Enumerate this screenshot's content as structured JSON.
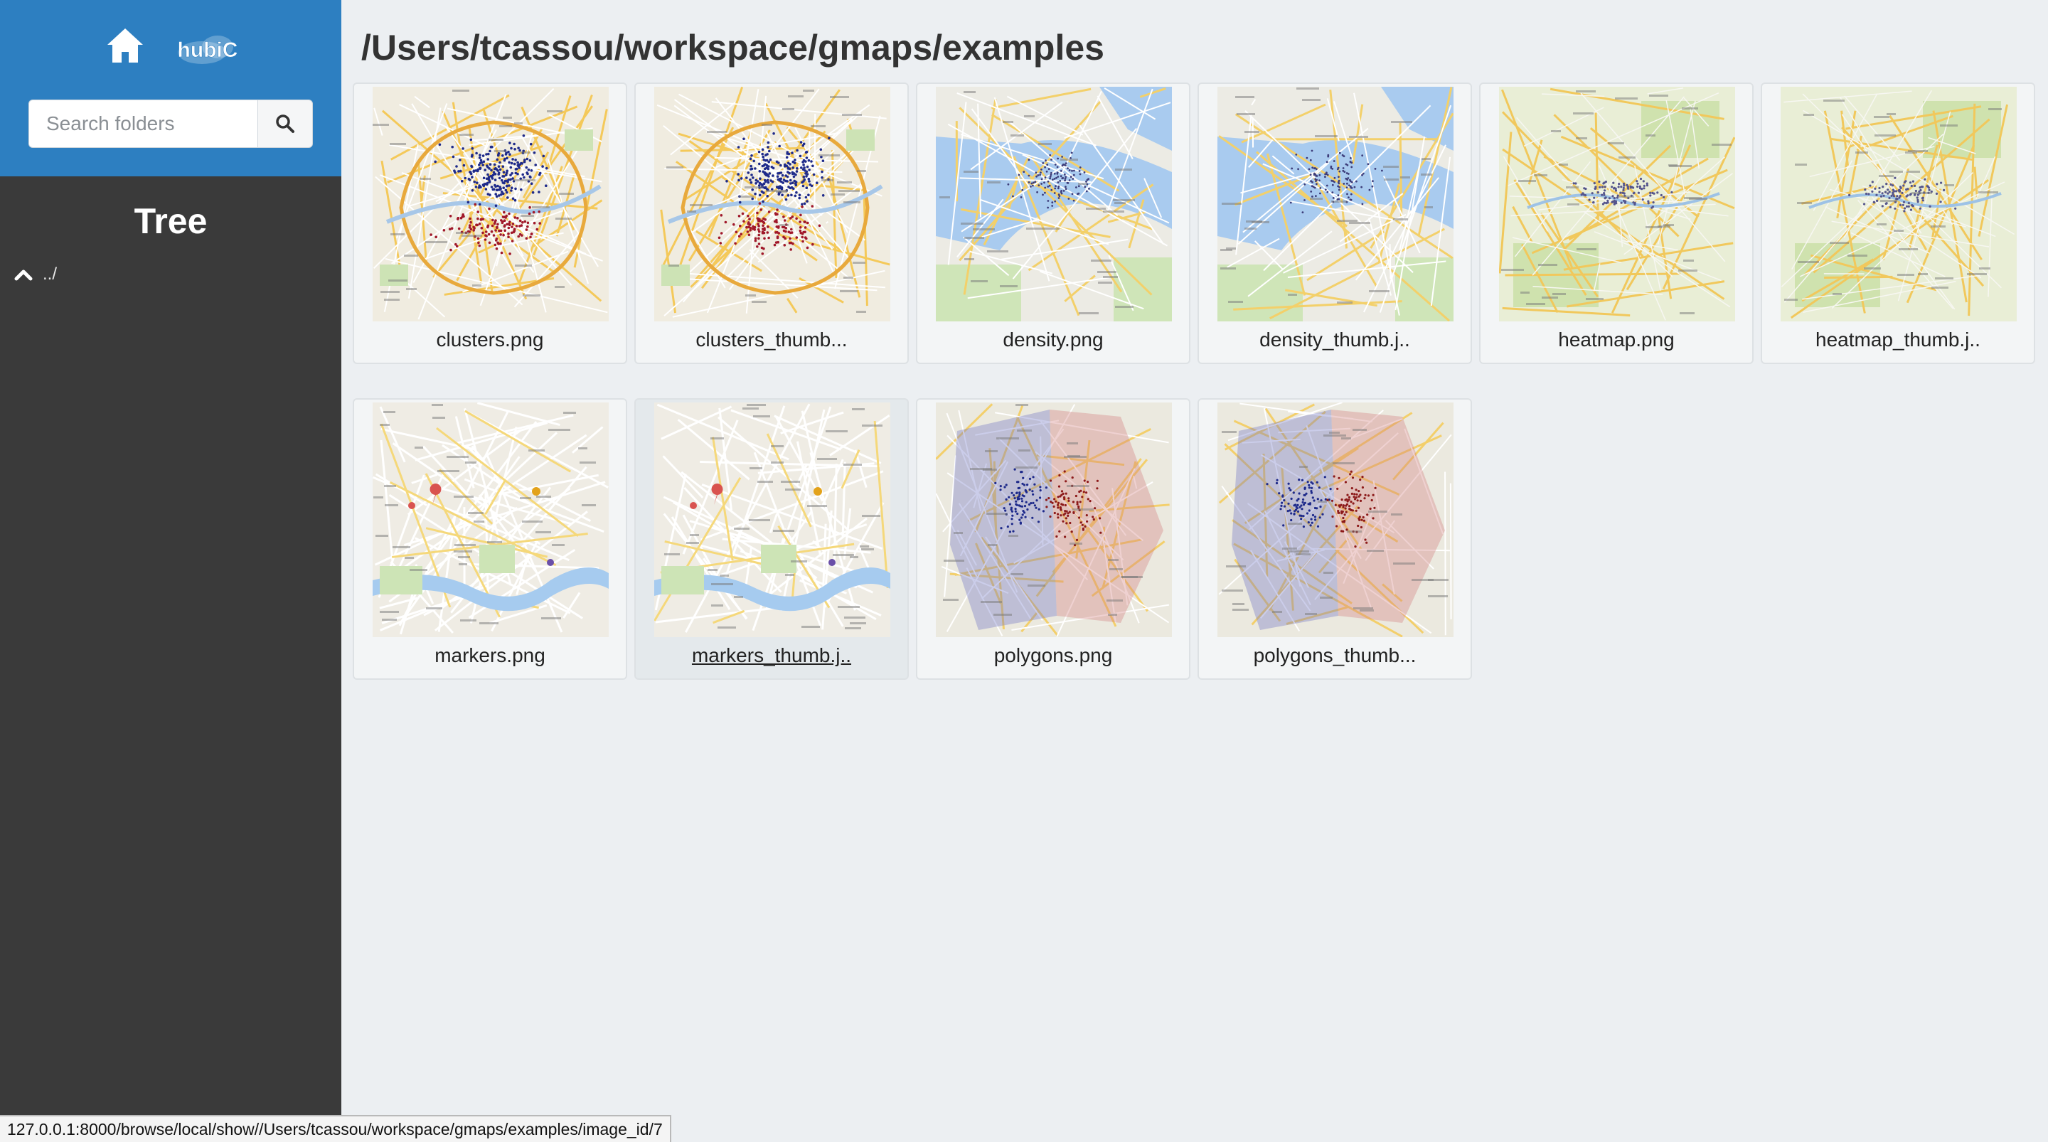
{
  "sidebar": {
    "logo_text": "hubiC",
    "search": {
      "placeholder": "Search folders",
      "value": ""
    },
    "tree_title": "Tree",
    "tree_up_label": "../"
  },
  "main": {
    "path_title": "/Users/tcassou/workspace/gmaps/examples",
    "files": [
      {
        "label": "clusters.png",
        "thumb": "clusters-thumbnail"
      },
      {
        "label": "clusters_thumb...",
        "thumb": "clusters-thumbnail"
      },
      {
        "label": "density.png",
        "thumb": "density-thumbnail"
      },
      {
        "label": "density_thumb.j..",
        "thumb": "density-thumbnail"
      },
      {
        "label": "heatmap.png",
        "thumb": "heatmap-thumbnail"
      },
      {
        "label": "heatmap_thumb.j..",
        "thumb": "heatmap-thumbnail"
      },
      {
        "label": "markers.png",
        "thumb": "markers-thumbnail"
      },
      {
        "label": "markers_thumb.j..",
        "thumb": "markers-thumbnail",
        "hovered": true
      },
      {
        "label": "polygons.png",
        "thumb": "polygons-thumbnail"
      },
      {
        "label": "polygons_thumb...",
        "thumb": "polygons-thumbnail"
      }
    ]
  },
  "statusbar": {
    "url": "127.0.0.1:8000/browse/local/show//Users/tcassou/workspace/gmaps/examples/image_id/7"
  },
  "colors": {
    "sidebar_header": "#2d7fc1",
    "sidebar_bg": "#3a3a3a",
    "main_bg": "#eceff2"
  }
}
